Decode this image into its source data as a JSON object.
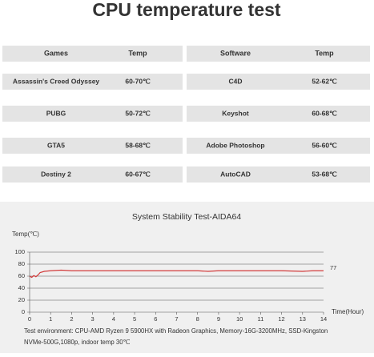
{
  "title": "CPU temperature test",
  "tables": [
    {
      "headers": [
        "Games",
        "Temp"
      ],
      "rows": [
        [
          "Assassin's Creed Odyssey",
          "60-70℃"
        ],
        [
          "PUBG",
          "50-72℃"
        ],
        [
          "GTA5",
          "58-68℃"
        ],
        [
          "Destiny 2",
          "60-67℃"
        ]
      ]
    },
    {
      "headers": [
        "Software",
        "Temp"
      ],
      "rows": [
        [
          "C4D",
          "52-62℃"
        ],
        [
          "Keyshot",
          "60-68℃"
        ],
        [
          "Adobe Photoshop",
          "56-60℃"
        ],
        [
          "AutoCAD",
          "53-68℃"
        ]
      ]
    }
  ],
  "chart_data": {
    "type": "line",
    "title": "System Stability Test-AIDA64",
    "y_label": "Temp(℃)",
    "x_label": "Time(Hour)",
    "annotation": "77",
    "x": [
      0,
      0.1,
      0.2,
      0.3,
      0.4,
      0.5,
      0.7,
      1,
      1.5,
      2,
      3,
      4,
      5,
      6,
      7,
      8,
      8.5,
      9,
      10,
      11,
      12,
      13,
      13.5,
      14
    ],
    "series": [
      {
        "name": "Temp",
        "color": "#d23a3a",
        "values": [
          60,
          58,
          61,
          59,
          62,
          66,
          68,
          69,
          70,
          69,
          69,
          69,
          69,
          69,
          69,
          69,
          68,
          69,
          69,
          69,
          69,
          68,
          69,
          69
        ]
      }
    ],
    "xlim": [
      0,
      14
    ],
    "ylim": [
      0,
      100
    ],
    "xticks": [
      0,
      1,
      2,
      3,
      4,
      5,
      6,
      7,
      8,
      9,
      10,
      11,
      12,
      13,
      14
    ],
    "yticks": [
      0,
      20,
      40,
      60,
      80,
      100
    ],
    "grid": true
  },
  "footer": [
    "Test environment: CPU-AMD Ryzen 9 5900HX with Radeon Graphics,  Memory-16G-3200MHz, SSD-Kingston",
    "NVMe-500G,1080p, indoor temp 30℃"
  ]
}
